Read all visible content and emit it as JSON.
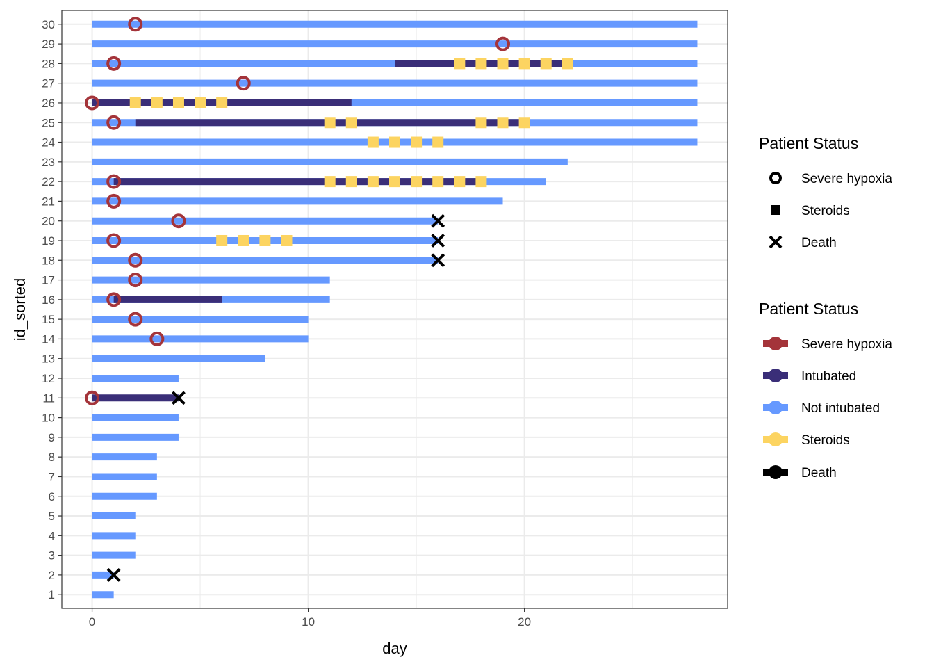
{
  "chart_data": {
    "type": "timeline",
    "xlabel": "day",
    "ylabel": "id_sorted",
    "xlim": [
      -1.4,
      29.4
    ],
    "ylim": [
      0.3,
      30.7
    ],
    "x_ticks": [
      0,
      10,
      20
    ],
    "y_ticks": [
      1,
      2,
      3,
      4,
      5,
      6,
      7,
      8,
      9,
      10,
      11,
      12,
      13,
      14,
      15,
      16,
      17,
      18,
      19,
      20,
      21,
      22,
      23,
      24,
      25,
      26,
      27,
      28,
      29,
      30
    ],
    "grid": true,
    "colors": {
      "severe_hypoxia": "#A4343A",
      "intubated": "#3A2E78",
      "not_intubated": "#6699FF",
      "steroids": "#FCD461",
      "death": "#000000"
    },
    "not_intubated_bars": [
      {
        "id": 1,
        "start": 0,
        "end": 1
      },
      {
        "id": 2,
        "start": 0,
        "end": 1
      },
      {
        "id": 3,
        "start": 0,
        "end": 2
      },
      {
        "id": 4,
        "start": 0,
        "end": 2
      },
      {
        "id": 5,
        "start": 0,
        "end": 2
      },
      {
        "id": 6,
        "start": 0,
        "end": 3
      },
      {
        "id": 7,
        "start": 0,
        "end": 3
      },
      {
        "id": 8,
        "start": 0,
        "end": 3
      },
      {
        "id": 9,
        "start": 0,
        "end": 4
      },
      {
        "id": 10,
        "start": 0,
        "end": 4
      },
      {
        "id": 12,
        "start": 0,
        "end": 4
      },
      {
        "id": 13,
        "start": 0,
        "end": 8
      },
      {
        "id": 14,
        "start": 0,
        "end": 10
      },
      {
        "id": 15,
        "start": 0,
        "end": 10
      },
      {
        "id": 16,
        "start": 0,
        "end": 11
      },
      {
        "id": 17,
        "start": 0,
        "end": 11
      },
      {
        "id": 18,
        "start": 0,
        "end": 16
      },
      {
        "id": 19,
        "start": 0,
        "end": 16
      },
      {
        "id": 20,
        "start": 0,
        "end": 16
      },
      {
        "id": 21,
        "start": 0,
        "end": 19
      },
      {
        "id": 22,
        "start": 0,
        "end": 21
      },
      {
        "id": 23,
        "start": 0,
        "end": 22
      },
      {
        "id": 24,
        "start": 0,
        "end": 28
      },
      {
        "id": 25,
        "start": 0,
        "end": 28
      },
      {
        "id": 26,
        "start": 0,
        "end": 28
      },
      {
        "id": 27,
        "start": 0,
        "end": 28
      },
      {
        "id": 28,
        "start": 0,
        "end": 28
      },
      {
        "id": 29,
        "start": 0,
        "end": 28
      },
      {
        "id": 30,
        "start": 0,
        "end": 28
      }
    ],
    "intubated_bars": [
      {
        "id": 11,
        "start": 0,
        "end": 4
      },
      {
        "id": 16,
        "start": 1,
        "end": 6
      },
      {
        "id": 22,
        "start": 1,
        "end": 18
      },
      {
        "id": 25,
        "start": 2,
        "end": 20
      },
      {
        "id": 26,
        "start": 0,
        "end": 12
      },
      {
        "id": 28,
        "start": 14,
        "end": 22
      }
    ],
    "severe_hypoxia_points": [
      {
        "id": 11,
        "day": 0
      },
      {
        "id": 14,
        "day": 3
      },
      {
        "id": 15,
        "day": 2
      },
      {
        "id": 16,
        "day": 1
      },
      {
        "id": 17,
        "day": 2
      },
      {
        "id": 18,
        "day": 2
      },
      {
        "id": 19,
        "day": 1
      },
      {
        "id": 20,
        "day": 4
      },
      {
        "id": 21,
        "day": 1
      },
      {
        "id": 22,
        "day": 1
      },
      {
        "id": 25,
        "day": 1
      },
      {
        "id": 26,
        "day": 0
      },
      {
        "id": 27,
        "day": 7
      },
      {
        "id": 28,
        "day": 1
      },
      {
        "id": 29,
        "day": 19
      },
      {
        "id": 30,
        "day": 2
      }
    ],
    "steroid_points": [
      {
        "id": 19,
        "days": [
          6,
          7,
          8,
          9
        ]
      },
      {
        "id": 22,
        "days": [
          11,
          12,
          13,
          14,
          15,
          16,
          17,
          18
        ]
      },
      {
        "id": 24,
        "days": [
          13,
          14,
          15,
          16
        ]
      },
      {
        "id": 25,
        "days": [
          11,
          12,
          18,
          19,
          20
        ]
      },
      {
        "id": 26,
        "days": [
          2,
          3,
          4,
          5,
          6
        ]
      },
      {
        "id": 28,
        "days": [
          17,
          18,
          19,
          20,
          21,
          22
        ]
      }
    ],
    "death_points": [
      {
        "id": 2,
        "day": 1
      },
      {
        "id": 11,
        "day": 4
      },
      {
        "id": 18,
        "day": 16
      },
      {
        "id": 19,
        "day": 16
      },
      {
        "id": 20,
        "day": 16
      }
    ],
    "legend_shapes": {
      "title": "Patient Status",
      "items": [
        {
          "label": "Severe hypoxia",
          "shape": "ring-icon"
        },
        {
          "label": "Steroids",
          "shape": "square-icon"
        },
        {
          "label": "Death",
          "shape": "cross-icon"
        }
      ]
    },
    "legend_colors": {
      "title": "Patient Status",
      "items": [
        {
          "label": "Severe hypoxia",
          "color": "#A4343A"
        },
        {
          "label": "Intubated",
          "color": "#3A2E78"
        },
        {
          "label": "Not intubated",
          "color": "#6699FF"
        },
        {
          "label": "Steroids",
          "color": "#FCD461"
        },
        {
          "label": "Death",
          "color": "#000000"
        }
      ]
    }
  }
}
